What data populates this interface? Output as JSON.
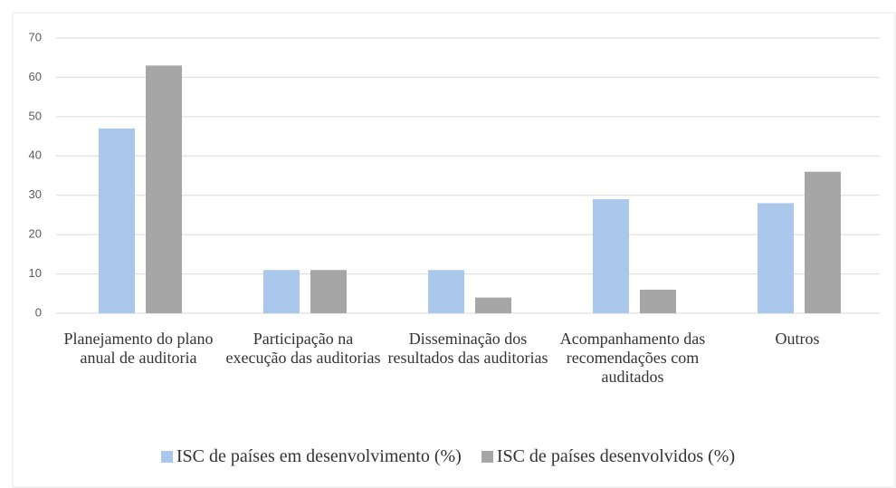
{
  "chart_data": {
    "type": "bar",
    "categories": [
      "Planejamento do plano anual de auditoria",
      "Participação na execução das auditorias",
      "Disseminação dos resultados das auditorias",
      "Acompanhamento das recomendações com auditados",
      "Outros"
    ],
    "series": [
      {
        "name": "ISC de países em desenvolvimento (%)",
        "color": "#a9c8ec",
        "values": [
          47,
          11,
          11,
          29,
          28
        ]
      },
      {
        "name": "ISC de países desenvolvidos (%)",
        "color": "#a6a6a6",
        "values": [
          63,
          11,
          4,
          6,
          36
        ]
      }
    ],
    "ylim": [
      0,
      70
    ],
    "yticks": [
      0,
      10,
      20,
      30,
      40,
      50,
      60,
      70
    ],
    "grid": true
  }
}
